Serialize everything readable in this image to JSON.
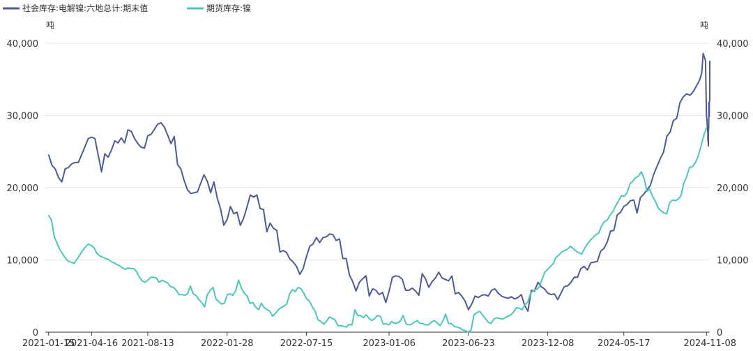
{
  "chart_data": {
    "type": "line",
    "legend": {
      "placement": "top-left",
      "entries": [
        "社会库存:电解镍:六地总计:期末值",
        "期货库存:镍"
      ]
    },
    "y_unit_left": "吨",
    "y_unit_right": "吨",
    "y_ticks": [
      "0",
      "10,000",
      "20,000",
      "30,000",
      "40,000"
    ],
    "ylim": [
      0,
      40000
    ],
    "x_tick_labels": [
      "2021-01-15",
      "2021-04-16",
      "2021-08-13",
      "2022-01-28",
      "2022-07-15",
      "2023-01-06",
      "2023-06-23",
      "2023-12-08",
      "2024-05-17",
      "2024-11-08"
    ],
    "x_range": [
      "2021-01-08",
      "2024-11-15"
    ],
    "grid": true,
    "series": [
      {
        "name": "社会库存:电解镍:六地总计:期末值",
        "color": "#4e5a95",
        "axis": "left",
        "points": [
          [
            "2021-01-15",
            24600
          ],
          [
            "2021-01-22",
            23100
          ],
          [
            "2021-01-29",
            22600
          ],
          [
            "2021-02-05",
            21400
          ],
          [
            "2021-02-12",
            20800
          ],
          [
            "2021-02-19",
            22600
          ],
          [
            "2021-02-26",
            22800
          ],
          [
            "2021-03-05",
            23300
          ],
          [
            "2021-03-12",
            23500
          ],
          [
            "2021-03-19",
            23500
          ],
          [
            "2021-03-26",
            24600
          ],
          [
            "2021-04-02",
            25700
          ],
          [
            "2021-04-09",
            26800
          ],
          [
            "2021-04-16",
            27000
          ],
          [
            "2021-04-23",
            26800
          ],
          [
            "2021-04-30",
            24500
          ],
          [
            "2021-05-07",
            22200
          ],
          [
            "2021-05-14",
            24700
          ],
          [
            "2021-05-21",
            24200
          ],
          [
            "2021-05-28",
            25200
          ],
          [
            "2021-06-04",
            26500
          ],
          [
            "2021-06-11",
            26200
          ],
          [
            "2021-06-18",
            26900
          ],
          [
            "2021-06-25",
            26200
          ],
          [
            "2021-07-02",
            28000
          ],
          [
            "2021-07-09",
            27800
          ],
          [
            "2021-07-16",
            26800
          ],
          [
            "2021-07-23",
            26100
          ],
          [
            "2021-07-30",
            25600
          ],
          [
            "2021-08-06",
            25500
          ],
          [
            "2021-08-13",
            27200
          ],
          [
            "2021-08-20",
            27400
          ],
          [
            "2021-08-27",
            28100
          ],
          [
            "2021-09-03",
            28800
          ],
          [
            "2021-09-10",
            29000
          ],
          [
            "2021-09-17",
            28400
          ],
          [
            "2021-09-24",
            27300
          ],
          [
            "2021-10-01",
            26100
          ],
          [
            "2021-10-08",
            27100
          ],
          [
            "2021-10-15",
            23200
          ],
          [
            "2021-10-22",
            22600
          ],
          [
            "2021-10-29",
            21000
          ],
          [
            "2021-11-05",
            19700
          ],
          [
            "2021-11-12",
            19200
          ],
          [
            "2021-11-19",
            19300
          ],
          [
            "2021-11-26",
            19400
          ],
          [
            "2021-12-03",
            20600
          ],
          [
            "2021-12-10",
            21800
          ],
          [
            "2021-12-17",
            20900
          ],
          [
            "2021-12-24",
            19300
          ],
          [
            "2021-12-31",
            20800
          ],
          [
            "2022-01-07",
            18600
          ],
          [
            "2022-01-14",
            17100
          ],
          [
            "2022-01-21",
            14800
          ],
          [
            "2022-01-28",
            15600
          ],
          [
            "2022-02-04",
            17400
          ],
          [
            "2022-02-11",
            16400
          ],
          [
            "2022-02-18",
            16600
          ],
          [
            "2022-02-25",
            14800
          ],
          [
            "2022-03-04",
            15800
          ],
          [
            "2022-03-11",
            17300
          ],
          [
            "2022-03-18",
            19000
          ],
          [
            "2022-03-25",
            18700
          ],
          [
            "2022-04-01",
            19000
          ],
          [
            "2022-04-08",
            17100
          ],
          [
            "2022-04-15",
            17000
          ],
          [
            "2022-04-22",
            13900
          ],
          [
            "2022-04-29",
            15100
          ],
          [
            "2022-05-06",
            14400
          ],
          [
            "2022-05-13",
            14100
          ],
          [
            "2022-05-20",
            11100
          ],
          [
            "2022-05-27",
            11300
          ],
          [
            "2022-06-03",
            11000
          ],
          [
            "2022-06-10",
            10100
          ],
          [
            "2022-06-17",
            9700
          ],
          [
            "2022-06-24",
            9100
          ],
          [
            "2022-07-01",
            8000
          ],
          [
            "2022-07-08",
            8800
          ],
          [
            "2022-07-15",
            10500
          ],
          [
            "2022-07-22",
            11900
          ],
          [
            "2022-07-29",
            12200
          ],
          [
            "2022-08-05",
            13100
          ],
          [
            "2022-08-12",
            12400
          ],
          [
            "2022-08-19",
            13100
          ],
          [
            "2022-08-26",
            13200
          ],
          [
            "2022-09-02",
            13600
          ],
          [
            "2022-09-09",
            13500
          ],
          [
            "2022-09-16",
            12700
          ],
          [
            "2022-09-23",
            12900
          ],
          [
            "2022-09-30",
            10200
          ],
          [
            "2022-10-07",
            10200
          ],
          [
            "2022-10-14",
            7900
          ],
          [
            "2022-10-21",
            7000
          ],
          [
            "2022-10-28",
            5700
          ],
          [
            "2022-11-04",
            6900
          ],
          [
            "2022-11-11",
            7400
          ],
          [
            "2022-11-18",
            7800
          ],
          [
            "2022-11-25",
            5000
          ],
          [
            "2022-12-02",
            6000
          ],
          [
            "2022-12-09",
            5800
          ],
          [
            "2022-12-16",
            5200
          ],
          [
            "2022-12-23",
            5500
          ],
          [
            "2022-12-30",
            4100
          ],
          [
            "2023-01-06",
            5700
          ],
          [
            "2023-01-13",
            7600
          ],
          [
            "2023-01-20",
            7800
          ],
          [
            "2023-01-27",
            7700
          ],
          [
            "2023-02-03",
            7300
          ],
          [
            "2023-02-10",
            5800
          ],
          [
            "2023-02-17",
            5800
          ],
          [
            "2023-02-24",
            6100
          ],
          [
            "2023-03-03",
            5700
          ],
          [
            "2023-03-10",
            5100
          ],
          [
            "2023-03-17",
            8100
          ],
          [
            "2023-03-24",
            7400
          ],
          [
            "2023-03-31",
            6200
          ],
          [
            "2023-04-07",
            7000
          ],
          [
            "2023-04-14",
            7500
          ],
          [
            "2023-04-21",
            8300
          ],
          [
            "2023-04-28",
            7500
          ],
          [
            "2023-05-05",
            7300
          ],
          [
            "2023-05-12",
            7100
          ],
          [
            "2023-05-19",
            7800
          ],
          [
            "2023-05-26",
            5300
          ],
          [
            "2023-06-02",
            5500
          ],
          [
            "2023-06-09",
            5000
          ],
          [
            "2023-06-16",
            4300
          ],
          [
            "2023-06-23",
            3100
          ],
          [
            "2023-06-30",
            3900
          ],
          [
            "2023-07-07",
            5000
          ],
          [
            "2023-07-14",
            4800
          ],
          [
            "2023-07-21",
            5100
          ],
          [
            "2023-07-28",
            5200
          ],
          [
            "2023-08-04",
            5000
          ],
          [
            "2023-08-11",
            5800
          ],
          [
            "2023-08-18",
            6000
          ],
          [
            "2023-08-25",
            5400
          ],
          [
            "2023-09-01",
            5000
          ],
          [
            "2023-09-08",
            4800
          ],
          [
            "2023-09-15",
            4700
          ],
          [
            "2023-09-22",
            4900
          ],
          [
            "2023-09-29",
            4600
          ],
          [
            "2023-10-06",
            4800
          ],
          [
            "2023-10-13",
            5200
          ],
          [
            "2023-10-20",
            3700
          ],
          [
            "2023-10-27",
            2900
          ],
          [
            "2023-11-03",
            5800
          ],
          [
            "2023-11-10",
            5700
          ],
          [
            "2023-11-17",
            6900
          ],
          [
            "2023-11-24",
            6300
          ],
          [
            "2023-12-01",
            6000
          ],
          [
            "2023-12-08",
            5400
          ],
          [
            "2023-12-15",
            5200
          ],
          [
            "2023-12-22",
            5300
          ],
          [
            "2023-12-29",
            4500
          ],
          [
            "2024-01-05",
            5400
          ],
          [
            "2024-01-12",
            6300
          ],
          [
            "2024-01-19",
            6400
          ],
          [
            "2024-01-26",
            6900
          ],
          [
            "2024-02-02",
            7600
          ],
          [
            "2024-02-09",
            7600
          ],
          [
            "2024-02-16",
            8800
          ],
          [
            "2024-02-23",
            9100
          ],
          [
            "2024-03-01",
            8600
          ],
          [
            "2024-03-08",
            9600
          ],
          [
            "2024-03-15",
            9700
          ],
          [
            "2024-03-22",
            9800
          ],
          [
            "2024-03-29",
            11200
          ],
          [
            "2024-04-05",
            11600
          ],
          [
            "2024-04-12",
            12500
          ],
          [
            "2024-04-19",
            14000
          ],
          [
            "2024-04-26",
            14100
          ],
          [
            "2024-05-03",
            16200
          ],
          [
            "2024-05-10",
            16600
          ],
          [
            "2024-05-17",
            17400
          ],
          [
            "2024-05-24",
            17700
          ],
          [
            "2024-05-31",
            18200
          ],
          [
            "2024-06-07",
            18300
          ],
          [
            "2024-06-14",
            16500
          ],
          [
            "2024-06-21",
            18600
          ],
          [
            "2024-06-28",
            19100
          ],
          [
            "2024-07-05",
            19700
          ],
          [
            "2024-07-12",
            20300
          ],
          [
            "2024-07-19",
            21800
          ],
          [
            "2024-07-26",
            22900
          ],
          [
            "2024-08-02",
            24000
          ],
          [
            "2024-08-09",
            24900
          ],
          [
            "2024-08-16",
            27100
          ],
          [
            "2024-08-23",
            27700
          ],
          [
            "2024-08-30",
            29300
          ],
          [
            "2024-09-06",
            29600
          ],
          [
            "2024-09-13",
            31800
          ],
          [
            "2024-09-20",
            32600
          ],
          [
            "2024-09-27",
            33000
          ],
          [
            "2024-10-04",
            32800
          ],
          [
            "2024-10-11",
            33300
          ],
          [
            "2024-10-18",
            34100
          ],
          [
            "2024-10-25",
            35000
          ],
          [
            "2024-10-29",
            35900
          ],
          [
            "2024-11-01",
            38600
          ],
          [
            "2024-11-04",
            38000
          ],
          [
            "2024-11-06",
            37600
          ],
          [
            "2024-11-07",
            33600
          ],
          [
            "2024-11-08",
            29800
          ],
          [
            "2024-11-09",
            29500
          ],
          [
            "2024-11-10",
            28200
          ],
          [
            "2024-11-11",
            27600
          ],
          [
            "2024-11-11",
            26700
          ],
          [
            "2024-11-12",
            26000
          ],
          [
            "2024-11-12",
            25800
          ],
          [
            "2024-11-12",
            27500
          ],
          [
            "2024-11-13",
            28800
          ],
          [
            "2024-11-13",
            28900
          ],
          [
            "2024-11-13",
            31800
          ],
          [
            "2024-11-14",
            29800
          ],
          [
            "2024-11-14",
            30000
          ],
          [
            "2024-11-14",
            31800
          ],
          [
            "2024-11-15",
            32100
          ],
          [
            "2024-11-15",
            36400
          ],
          [
            "2024-11-15",
            37500
          ],
          [
            "2024-11-15",
            37300
          ]
        ]
      },
      {
        "name": "期货库存:镍",
        "color": "#4cc7b8",
        "axis": "right",
        "values": [
          16200,
          15500,
          13200,
          12300,
          11400,
          10800,
          10200,
          9800,
          9700,
          9500,
          10100,
          10700,
          11300,
          11800,
          12200,
          12000,
          11700,
          10900,
          10600,
          10400,
          10200,
          10100,
          9800,
          9600,
          9400,
          9200,
          8900,
          8700,
          8900,
          8800,
          8800,
          8400,
          7600,
          7100,
          6900,
          7200,
          7600,
          7600,
          7500,
          6900,
          7200,
          7000,
          6800,
          6300,
          6200,
          5800,
          5200,
          5200,
          5100,
          5300,
          6400,
          5300,
          5100,
          4500,
          4100,
          3500,
          5200,
          5800,
          6200,
          4600,
          4200,
          3900,
          4000,
          5200,
          5300,
          5100,
          5800,
          7200,
          6100,
          5400,
          5000,
          4000,
          4100,
          3500,
          3100,
          4000,
          3400,
          3100,
          2900,
          2200,
          2600,
          3100,
          3400,
          3600,
          3900,
          5300,
          5900,
          5600,
          6200,
          6000,
          5400,
          4600,
          4300,
          3500,
          2900,
          1700,
          1500,
          1100,
          1500,
          2100,
          1900,
          1700,
          900,
          900,
          800,
          700,
          1100,
          1000,
          3100,
          2300,
          2300,
          2000,
          2400,
          1900,
          1600,
          1900,
          2300,
          2200,
          1100,
          1200,
          1000,
          1500,
          1200,
          1300,
          1500,
          2300,
          1200,
          1000,
          1100,
          1400,
          1600,
          1200,
          1200,
          1000,
          1000,
          1400,
          1600,
          1300,
          900,
          1500,
          2500,
          1200,
          1200,
          800,
          700,
          600,
          300,
          200,
          0,
          300,
          2400,
          2700,
          2900,
          2400,
          1900,
          1400,
          1200,
          1800,
          2000,
          1900,
          1800,
          2000,
          2200,
          2400,
          2800,
          3400,
          3300,
          3100,
          3800,
          4200,
          5400,
          5800,
          5900,
          6200,
          7300,
          8300,
          8700,
          9100,
          9500,
          10400,
          10700,
          11100,
          11300,
          11500,
          11900,
          11600,
          11200,
          11000,
          10800,
          11600,
          12200,
          12700,
          13100,
          13500,
          13700,
          14700,
          15300,
          15500,
          16200,
          16700,
          17500,
          18200,
          18900,
          18800,
          19300,
          20500,
          20900,
          21400,
          21600,
          22200,
          21300,
          19500,
          19800,
          18800,
          18100,
          17200,
          16800,
          16500,
          16400,
          17900,
          18300,
          18200,
          18400,
          18900,
          20600,
          21500,
          22800,
          22900,
          23400,
          24300,
          25600,
          27200,
          28300
        ]
      }
    ]
  }
}
